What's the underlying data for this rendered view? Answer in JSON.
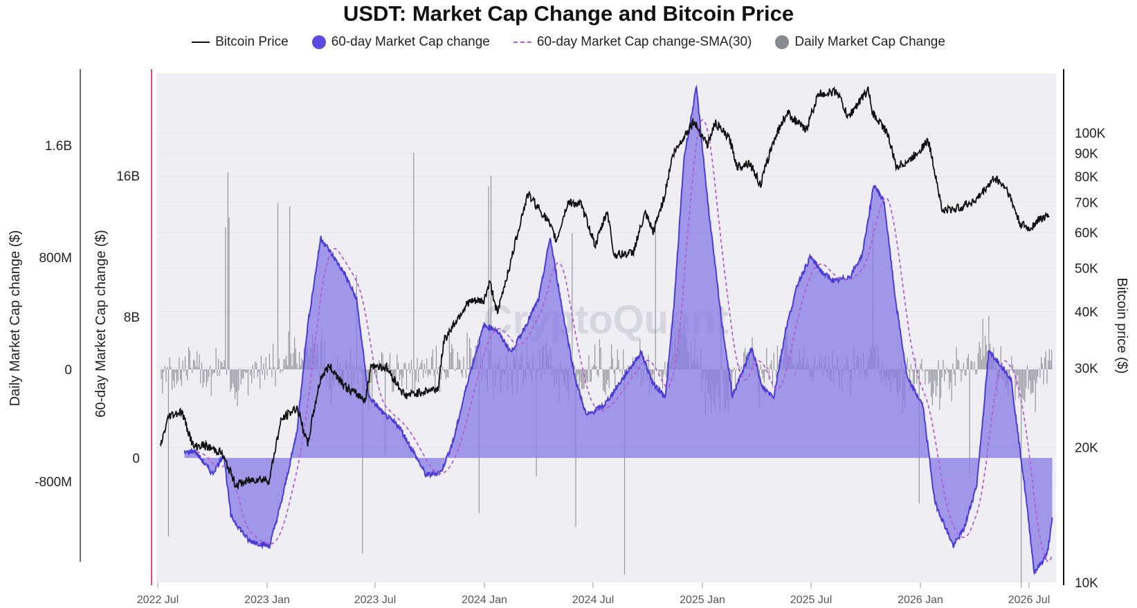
{
  "chart_data": {
    "type": "line",
    "title": "USDT: Market Cap Change and Bitcoin Price",
    "legend": [
      {
        "name": "Bitcoin Price",
        "style": "line",
        "color": "#111111"
      },
      {
        "name": "60-day Market Cap change",
        "style": "area",
        "color": "#5b4be0"
      },
      {
        "name": "60-day Market Cap change-SMA(30)",
        "style": "dashed-line",
        "color": "#b45ad8"
      },
      {
        "name": "Daily Market Cap Change",
        "style": "bar",
        "color": "#8a8a92"
      }
    ],
    "legend_position": "top-center",
    "watermark": "CryptoQuant",
    "x_axis": {
      "ticks": [
        "2022 Jul",
        "2023 Jan",
        "2023 Jul",
        "2024 Jan",
        "2024 Jul",
        "2025 Jan",
        "2025 Jul",
        "2026 Jan",
        "2026 Jul"
      ]
    },
    "y_axes": {
      "daily": {
        "label": "Daily Market Cap change ($)",
        "ticks": [
          "1.6B",
          "800M",
          "0",
          "-800M"
        ],
        "tick_values": [
          1600000000,
          800000000,
          0,
          -800000000
        ],
        "range": [
          -1600000000,
          2000000000
        ]
      },
      "sixty_day": {
        "label": "60-day Market Cap change ($)",
        "ticks": [
          "16B",
          "8B",
          "0"
        ],
        "tick_values": [
          16000000000,
          8000000000,
          0
        ],
        "range": [
          -6000000000,
          23000000000
        ]
      },
      "price": {
        "label": "Bitcoin price ($)",
        "scale": "log",
        "ticks": [
          "100K",
          "90K",
          "80K",
          "70K",
          "60K",
          "50K",
          "40K",
          "30K",
          "20K",
          "10K"
        ],
        "tick_values": [
          100000,
          90000,
          80000,
          70000,
          60000,
          50000,
          40000,
          30000,
          20000,
          10000
        ],
        "range": [
          10000,
          180000
        ]
      }
    },
    "grid": true,
    "btc_price": [
      [
        "2022-07-05",
        20000
      ],
      [
        "2022-07-20",
        23500
      ],
      [
        "2022-08-10",
        24000
      ],
      [
        "2022-08-30",
        20000
      ],
      [
        "2022-09-15",
        20200
      ],
      [
        "2022-10-15",
        19500
      ],
      [
        "2022-11-09",
        16500
      ],
      [
        "2022-12-15",
        17000
      ],
      [
        "2023-01-05",
        16900
      ],
      [
        "2023-01-25",
        23000
      ],
      [
        "2023-02-20",
        24500
      ],
      [
        "2023-03-10",
        20200
      ],
      [
        "2023-04-01",
        28500
      ],
      [
        "2023-04-15",
        30300
      ],
      [
        "2023-05-15",
        27000
      ],
      [
        "2023-06-15",
        25500
      ],
      [
        "2023-06-25",
        30500
      ],
      [
        "2023-07-20",
        30000
      ],
      [
        "2023-08-20",
        26000
      ],
      [
        "2023-09-15",
        26500
      ],
      [
        "2023-10-15",
        27000
      ],
      [
        "2023-10-25",
        34500
      ],
      [
        "2023-12-05",
        42000
      ],
      [
        "2023-12-31",
        42300
      ],
      [
        "2024-01-10",
        46500
      ],
      [
        "2024-01-23",
        39500
      ],
      [
        "2024-02-15",
        52000
      ],
      [
        "2024-03-14",
        73000
      ],
      [
        "2024-04-15",
        64000
      ],
      [
        "2024-05-01",
        57500
      ],
      [
        "2024-05-20",
        70000
      ],
      [
        "2024-06-10",
        69500
      ],
      [
        "2024-07-05",
        56000
      ],
      [
        "2024-07-25",
        67000
      ],
      [
        "2024-08-05",
        53500
      ],
      [
        "2024-09-06",
        54000
      ],
      [
        "2024-09-27",
        66000
      ],
      [
        "2024-10-10",
        60000
      ],
      [
        "2024-10-29",
        72000
      ],
      [
        "2024-11-12",
        89000
      ],
      [
        "2024-12-05",
        100000
      ],
      [
        "2024-12-17",
        106000
      ],
      [
        "2025-01-10",
        94000
      ],
      [
        "2025-01-22",
        105000
      ],
      [
        "2025-02-15",
        97000
      ],
      [
        "2025-02-28",
        84000
      ],
      [
        "2025-03-20",
        86000
      ],
      [
        "2025-04-08",
        76500
      ],
      [
        "2025-05-01",
        97000
      ],
      [
        "2025-05-22",
        111000
      ],
      [
        "2025-06-22",
        101000
      ],
      [
        "2025-07-14",
        122000
      ],
      [
        "2025-08-14",
        123500
      ],
      [
        "2025-09-01",
        108000
      ],
      [
        "2025-10-06",
        125000
      ],
      [
        "2025-10-11",
        111000
      ],
      [
        "2025-11-05",
        101000
      ],
      [
        "2025-11-21",
        84000
      ],
      [
        "2025-12-15",
        87000
      ],
      [
        "2026-01-14",
        96000
      ],
      [
        "2026-02-06",
        67000
      ],
      [
        "2026-03-05",
        68000
      ],
      [
        "2026-04-05",
        71000
      ],
      [
        "2026-05-05",
        79500
      ],
      [
        "2026-05-25",
        75000
      ],
      [
        "2026-06-15",
        63000
      ],
      [
        "2026-07-01",
        61000
      ],
      [
        "2026-07-20",
        64500
      ],
      [
        "2026-08-05",
        65000
      ]
    ],
    "change_60d": [
      [
        "2022-08-15",
        300000000
      ],
      [
        "2022-09-01",
        400000000
      ],
      [
        "2022-10-01",
        -900000000
      ],
      [
        "2022-10-20",
        200000000
      ],
      [
        "2022-11-01",
        -3300000000
      ],
      [
        "2022-12-01",
        -4700000000
      ],
      [
        "2023-01-05",
        -5000000000
      ],
      [
        "2023-01-25",
        -2500000000
      ],
      [
        "2023-02-20",
        1500000000
      ],
      [
        "2023-03-10",
        7500000000
      ],
      [
        "2023-04-01",
        12500000000
      ],
      [
        "2023-04-20",
        11500000000
      ],
      [
        "2023-05-10",
        10500000000
      ],
      [
        "2023-05-31",
        9000000000
      ],
      [
        "2023-06-20",
        3500000000
      ],
      [
        "2023-07-15",
        2500000000
      ],
      [
        "2023-08-10",
        1800000000
      ],
      [
        "2023-09-01",
        500000000
      ],
      [
        "2023-09-25",
        -1000000000
      ],
      [
        "2023-10-20",
        -800000000
      ],
      [
        "2023-11-10",
        1000000000
      ],
      [
        "2023-12-05",
        4500000000
      ],
      [
        "2023-12-31",
        7500000000
      ],
      [
        "2024-01-20",
        7300000000
      ],
      [
        "2024-02-15",
        6000000000
      ],
      [
        "2024-03-10",
        7500000000
      ],
      [
        "2024-04-01",
        9000000000
      ],
      [
        "2024-04-20",
        12500000000
      ],
      [
        "2024-05-10",
        8500000000
      ],
      [
        "2024-06-01",
        4500000000
      ],
      [
        "2024-06-20",
        2400000000
      ],
      [
        "2024-07-20",
        3000000000
      ],
      [
        "2024-08-20",
        4500000000
      ],
      [
        "2024-09-20",
        6000000000
      ],
      [
        "2024-10-10",
        4200000000
      ],
      [
        "2024-10-31",
        3500000000
      ],
      [
        "2024-11-15",
        9000000000
      ],
      [
        "2024-12-01",
        17000000000
      ],
      [
        "2024-12-22",
        21000000000
      ],
      [
        "2025-01-10",
        14500000000
      ],
      [
        "2025-02-01",
        8000000000
      ],
      [
        "2025-02-20",
        3500000000
      ],
      [
        "2025-03-10",
        5000000000
      ],
      [
        "2025-03-25",
        6300000000
      ],
      [
        "2025-04-10",
        4000000000
      ],
      [
        "2025-04-30",
        3500000000
      ],
      [
        "2025-05-20",
        7300000000
      ],
      [
        "2025-06-10",
        10000000000
      ],
      [
        "2025-06-30",
        11400000000
      ],
      [
        "2025-07-20",
        10500000000
      ],
      [
        "2025-08-10",
        10000000000
      ],
      [
        "2025-09-05",
        10300000000
      ],
      [
        "2025-09-25",
        11500000000
      ],
      [
        "2025-10-15",
        15500000000
      ],
      [
        "2025-11-01",
        14500000000
      ],
      [
        "2025-11-20",
        9000000000
      ],
      [
        "2025-12-10",
        4500000000
      ],
      [
        "2026-01-05",
        3000000000
      ],
      [
        "2026-01-25",
        -2500000000
      ],
      [
        "2026-02-25",
        -5000000000
      ],
      [
        "2026-03-15",
        -4000000000
      ],
      [
        "2026-04-05",
        -1500000000
      ],
      [
        "2026-04-25",
        6000000000
      ],
      [
        "2026-05-10",
        5500000000
      ],
      [
        "2026-06-01",
        4500000000
      ],
      [
        "2026-06-25",
        -2000000000
      ],
      [
        "2026-07-10",
        -6500000000
      ],
      [
        "2026-08-01",
        -5500000000
      ],
      [
        "2026-08-10",
        -3500000000
      ]
    ]
  }
}
